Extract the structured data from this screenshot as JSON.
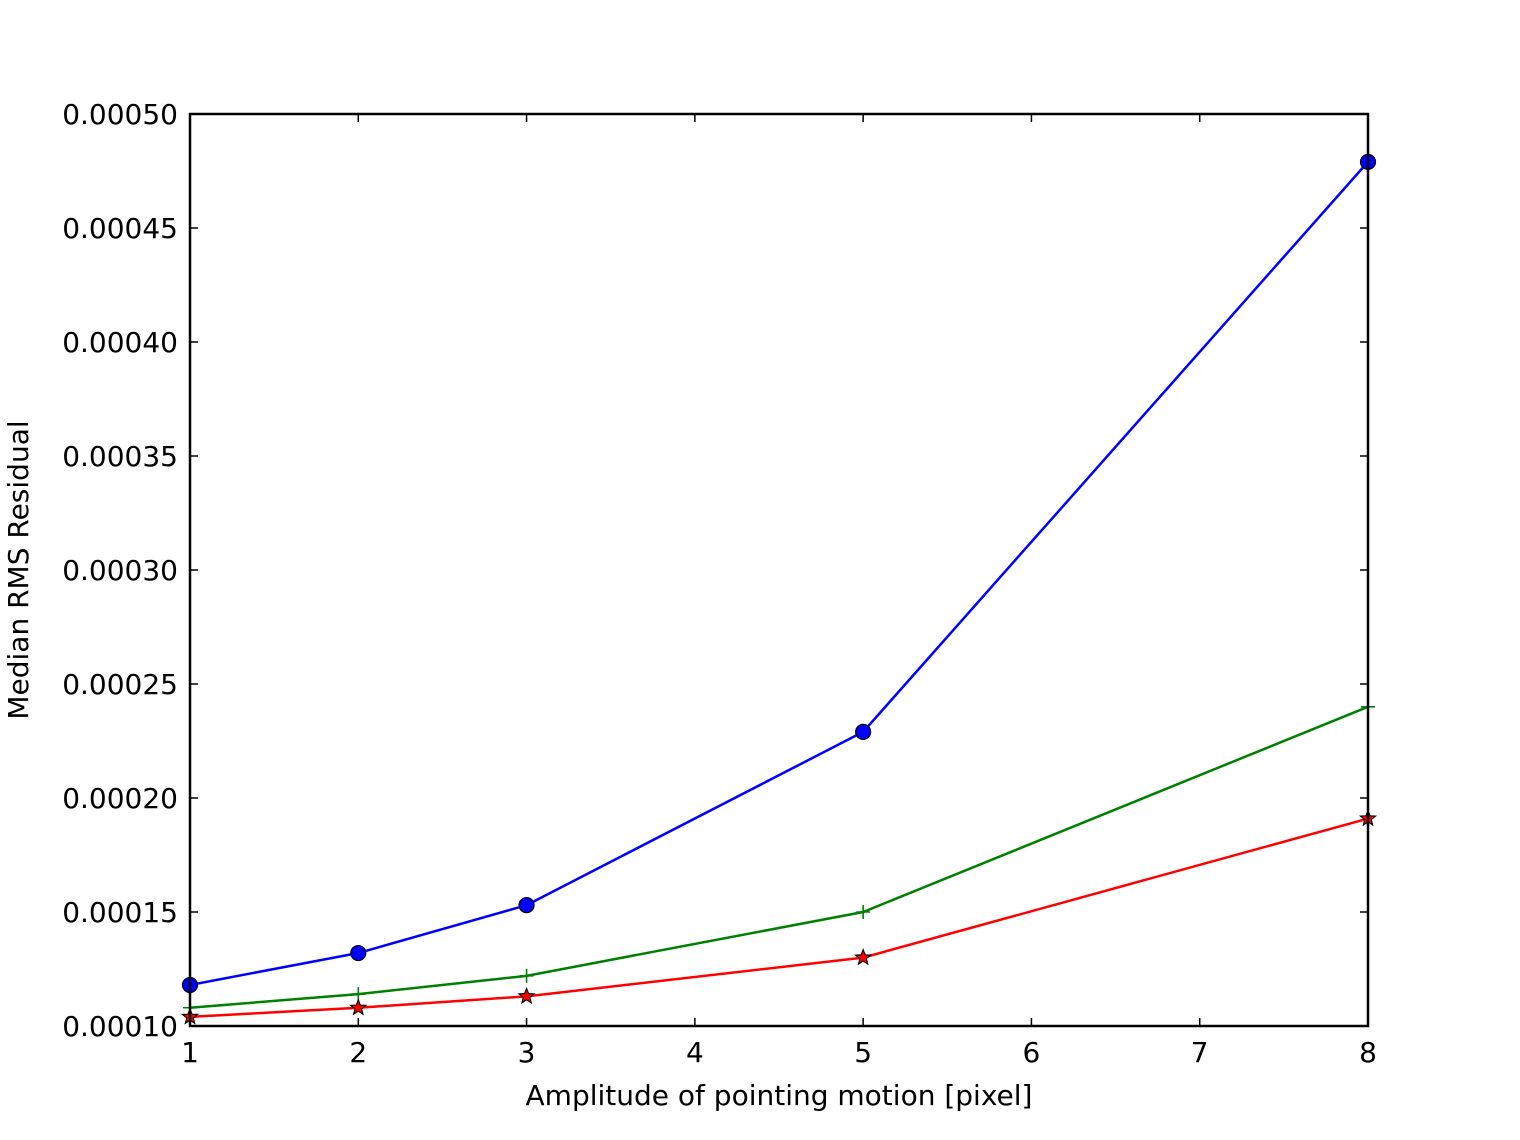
{
  "chart_data": {
    "type": "line",
    "title": "",
    "xlabel": "Amplitude of pointing motion [pixel]",
    "ylabel": "Median RMS Residual",
    "xlim": [
      1,
      8
    ],
    "ylim": [
      0.0001,
      0.0005
    ],
    "x_ticks": [
      1,
      2,
      3,
      4,
      5,
      6,
      7,
      8
    ],
    "x_tick_labels": [
      "1",
      "2",
      "3",
      "4",
      "5",
      "6",
      "7",
      "8"
    ],
    "y_ticks": [
      0.0001,
      0.00015,
      0.0002,
      0.00025,
      0.0003,
      0.00035,
      0.0004,
      0.00045,
      0.0005
    ],
    "y_tick_labels": [
      "0.00010",
      "0.00015",
      "0.00020",
      "0.00025",
      "0.00030",
      "0.00035",
      "0.00040",
      "0.00045",
      "0.00050"
    ],
    "grid": false,
    "legend": "none",
    "x": [
      1,
      2,
      3,
      5,
      8
    ],
    "series": [
      {
        "color": "#0000ff",
        "marker": "circle",
        "values": [
          0.000118,
          0.000132,
          0.000153,
          0.000229,
          0.000479
        ]
      },
      {
        "color": "#008000",
        "marker": "plus",
        "values": [
          0.000108,
          0.000114,
          0.000122,
          0.00015,
          0.00024
        ]
      },
      {
        "color": "#ff0000",
        "marker": "star",
        "values": [
          0.000104,
          0.000108,
          0.000113,
          0.00013,
          0.000191
        ]
      }
    ]
  }
}
